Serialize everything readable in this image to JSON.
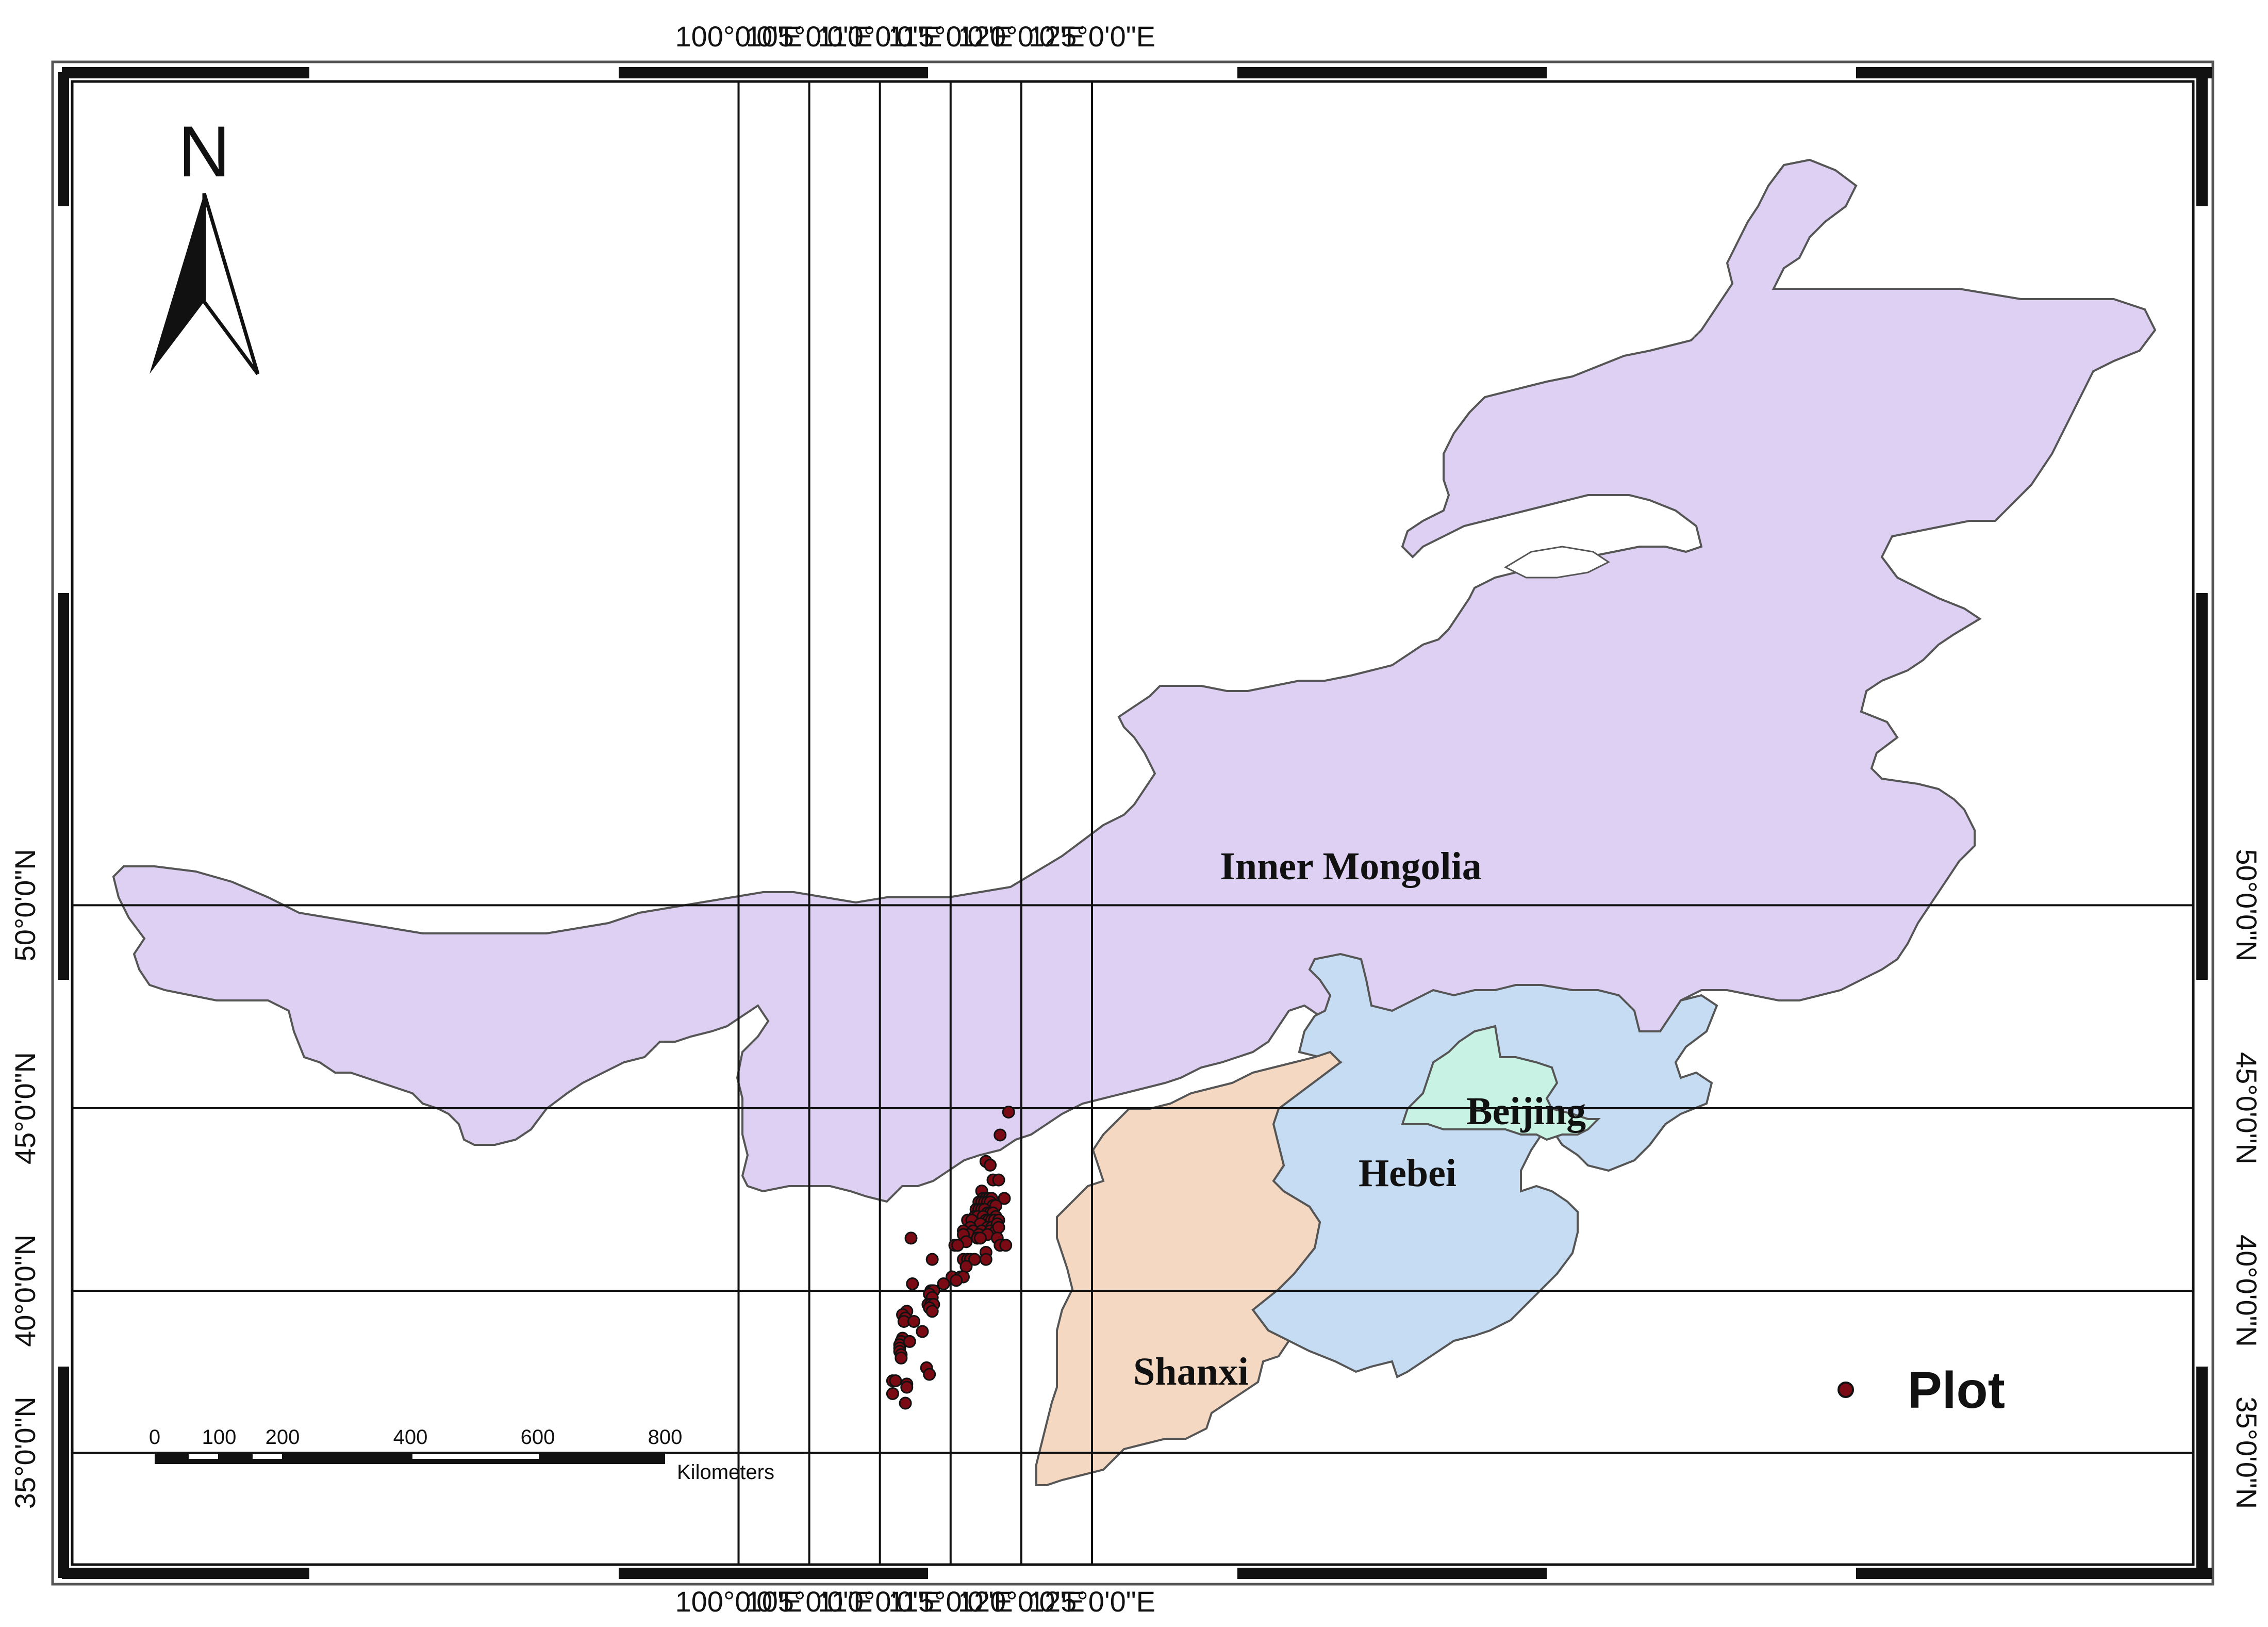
{
  "map": {
    "axes": {
      "lon_ticks": [
        {
          "lon": 100,
          "label": "100°0'0\"E"
        },
        {
          "lon": 105,
          "label": "105°0'0\"E"
        },
        {
          "lon": 110,
          "label": "110°0'0\"E"
        },
        {
          "lon": 115,
          "label": "115°0'0\"E"
        },
        {
          "lon": 120,
          "label": "120°0'0\"E"
        },
        {
          "lon": 125,
          "label": "125°0'0\"E"
        }
      ],
      "lat_ticks": [
        {
          "lat": 50,
          "label": "50°0'0\"N"
        },
        {
          "lat": 45,
          "label": "45°0'0\"N"
        },
        {
          "lat": 40,
          "label": "40°0'0\"N"
        },
        {
          "lat": 35,
          "label": "35°0'0\"N"
        }
      ]
    },
    "regions": [
      {
        "name": "Inner Mongolia",
        "color": "#ddd0f2"
      },
      {
        "name": "Hebei",
        "color": "#c5dcf3"
      },
      {
        "name": "Beijing",
        "color": "#c8f2e3"
      },
      {
        "name": "Shanxi",
        "color": "#f5d8c2"
      }
    ],
    "north_arrow": {
      "label": "N"
    },
    "scale_bar": {
      "ticks": [
        "0",
        "100",
        "200",
        "400",
        "600",
        "800"
      ],
      "unit": "Kilometers"
    },
    "legend": {
      "label": "Plot",
      "color": "#7a0b14"
    },
    "plots": [
      [
        119.1,
        44.9
      ],
      [
        118.5,
        44.3
      ],
      [
        117.5,
        43.6
      ],
      [
        117.8,
        43.5
      ],
      [
        118.0,
        43.1
      ],
      [
        118.4,
        43.1
      ],
      [
        117.2,
        42.8
      ],
      [
        117.3,
        42.6
      ],
      [
        117.5,
        42.6
      ],
      [
        117.7,
        42.6
      ],
      [
        117.9,
        42.6
      ],
      [
        118.8,
        42.6
      ],
      [
        117.0,
        42.5
      ],
      [
        117.2,
        42.5
      ],
      [
        117.4,
        42.5
      ],
      [
        117.6,
        42.5
      ],
      [
        117.8,
        42.5
      ],
      [
        118.0,
        42.4
      ],
      [
        118.2,
        42.4
      ],
      [
        116.8,
        42.3
      ],
      [
        117.0,
        42.3
      ],
      [
        117.2,
        42.3
      ],
      [
        117.4,
        42.3
      ],
      [
        117.6,
        42.2
      ],
      [
        117.8,
        42.2
      ],
      [
        118.0,
        42.2
      ],
      [
        118.2,
        42.1
      ],
      [
        116.7,
        42.1
      ],
      [
        116.9,
        42.1
      ],
      [
        117.3,
        42.1
      ],
      [
        117.5,
        42.0
      ],
      [
        117.7,
        42.0
      ],
      [
        117.9,
        42.0
      ],
      [
        118.1,
        42.0
      ],
      [
        118.4,
        42.0
      ],
      [
        116.2,
        42.0
      ],
      [
        116.5,
        42.0
      ],
      [
        117.1,
        41.9
      ],
      [
        117.6,
        41.8
      ],
      [
        117.9,
        41.8
      ],
      [
        118.3,
        41.9
      ],
      [
        116.4,
        41.8
      ],
      [
        116.6,
        41.7
      ],
      [
        117.2,
        41.7
      ],
      [
        117.8,
        41.7
      ],
      [
        118.2,
        41.7
      ],
      [
        118.4,
        41.8
      ],
      [
        115.9,
        41.7
      ],
      [
        116.3,
        41.6
      ],
      [
        117.0,
        41.6
      ],
      [
        117.6,
        41.6
      ],
      [
        115.9,
        41.6
      ],
      [
        116.9,
        41.5
      ],
      [
        116.1,
        41.4
      ],
      [
        117.1,
        41.5
      ],
      [
        118.3,
        41.5
      ],
      [
        115.3,
        41.3
      ],
      [
        115.5,
        41.3
      ],
      [
        118.5,
        41.3
      ],
      [
        118.9,
        41.3
      ],
      [
        117.5,
        41.1
      ],
      [
        117.5,
        40.9
      ],
      [
        112.2,
        41.5
      ],
      [
        113.7,
        40.9
      ],
      [
        115.9,
        40.9
      ],
      [
        116.2,
        40.9
      ],
      [
        116.4,
        40.9
      ],
      [
        116.7,
        40.9
      ],
      [
        116.1,
        40.7
      ],
      [
        115.7,
        40.4
      ],
      [
        115.9,
        40.4
      ],
      [
        115.1,
        40.4
      ],
      [
        115.4,
        40.3
      ],
      [
        114.5,
        40.2
      ],
      [
        112.3,
        40.2
      ],
      [
        113.6,
        40.0
      ],
      [
        113.7,
        40.0
      ],
      [
        113.8,
        40.0
      ],
      [
        113.5,
        39.9
      ],
      [
        113.7,
        39.8
      ],
      [
        113.4,
        39.6
      ],
      [
        113.6,
        39.6
      ],
      [
        113.8,
        39.6
      ],
      [
        113.5,
        39.5
      ],
      [
        113.7,
        39.4
      ],
      [
        111.9,
        39.4
      ],
      [
        111.6,
        39.3
      ],
      [
        111.8,
        39.2
      ],
      [
        111.7,
        39.1
      ],
      [
        112.4,
        39.1
      ],
      [
        113.0,
        38.8
      ],
      [
        111.6,
        38.6
      ],
      [
        111.5,
        38.5
      ],
      [
        111.4,
        38.4
      ],
      [
        111.4,
        38.3
      ],
      [
        112.1,
        38.5
      ],
      [
        111.4,
        38.2
      ],
      [
        111.5,
        38.1
      ],
      [
        111.5,
        38.0
      ],
      [
        113.3,
        37.7
      ],
      [
        113.5,
        37.5
      ],
      [
        110.9,
        37.3
      ],
      [
        111.1,
        37.3
      ],
      [
        111.9,
        37.2
      ],
      [
        111.9,
        37.1
      ],
      [
        110.9,
        36.9
      ],
      [
        111.8,
        36.6
      ]
    ]
  }
}
